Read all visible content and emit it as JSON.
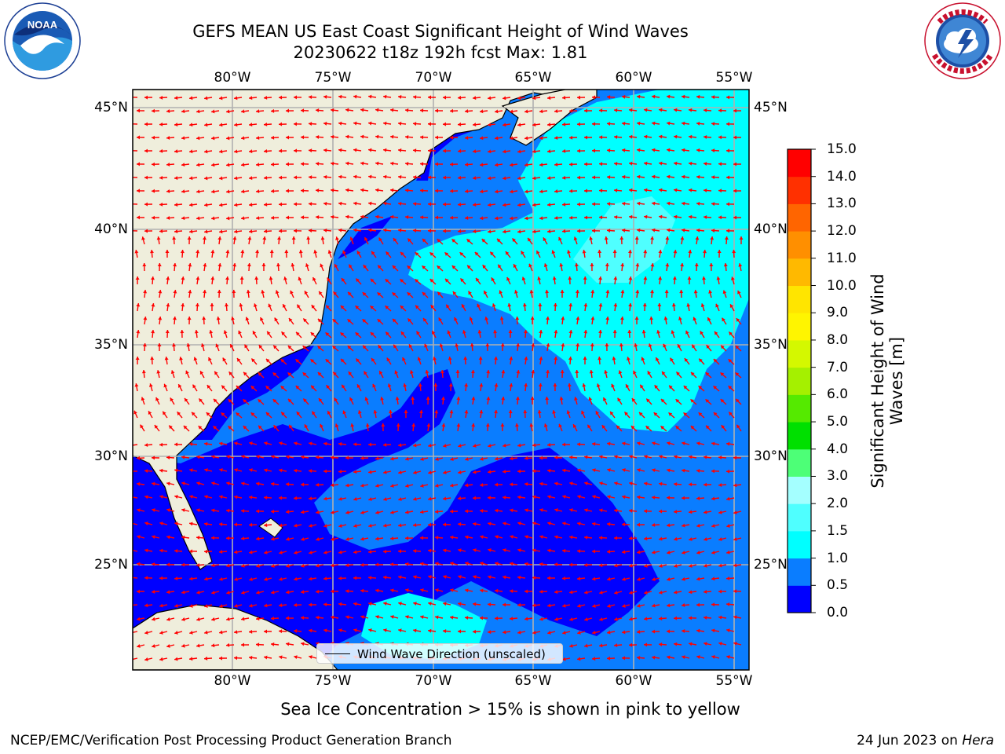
{
  "header": {
    "title_line1": "GEFS MEAN US East Coast Significant Height of Wind Waves",
    "title_line2": "20230622 t18z 192h fcst   Max: 1.81"
  },
  "logos": {
    "left": {
      "icon": "noaa-logo",
      "text": "NOAA"
    },
    "right": {
      "icon": "nws-logo",
      "text": "NATIONAL WEATHER SERVICE"
    }
  },
  "map": {
    "lon_ticks": [
      "80°W",
      "75°W",
      "70°W",
      "65°W",
      "60°W",
      "55°W"
    ],
    "lat_ticks_left": [
      "45°N",
      "40°N",
      "35°N",
      "30°N",
      "25°N"
    ],
    "lat_ticks_right": [
      "45°N",
      "40°N",
      "35°N",
      "30°N",
      "25°N"
    ],
    "legend_label": "Wind Wave Direction (unscaled)",
    "arrow_color": "#ff0000",
    "land_color": "#efeedc",
    "grid_color": "#b0b0b0"
  },
  "colorbar": {
    "title": "Significant Height of Wind Waves [m]",
    "tick_labels": [
      "0.0",
      "0.5",
      "1.0",
      "1.5",
      "2.0",
      "3.0",
      "4.0",
      "5.0",
      "6.0",
      "7.0",
      "8.0",
      "9.0",
      "10.0",
      "11.0",
      "12.0",
      "13.0",
      "14.0",
      "15.0"
    ],
    "colors": [
      "#0000ff",
      "#0a7dff",
      "#00ffff",
      "#4fffff",
      "#a4ffff",
      "#4dff77",
      "#00e000",
      "#55ea00",
      "#a5f000",
      "#d4f800",
      "#fff500",
      "#ffe500",
      "#ffb900",
      "#ff8f00",
      "#ff6500",
      "#ff3000",
      "#ff0000"
    ]
  },
  "caption": "Sea Ice Concentration > 15% is shown in pink to yellow",
  "footer": {
    "left": "NCEP/EMC/Verification Post Processing Product Generation Branch",
    "date": "24 Jun 2023 on ",
    "host": "Hera"
  }
}
